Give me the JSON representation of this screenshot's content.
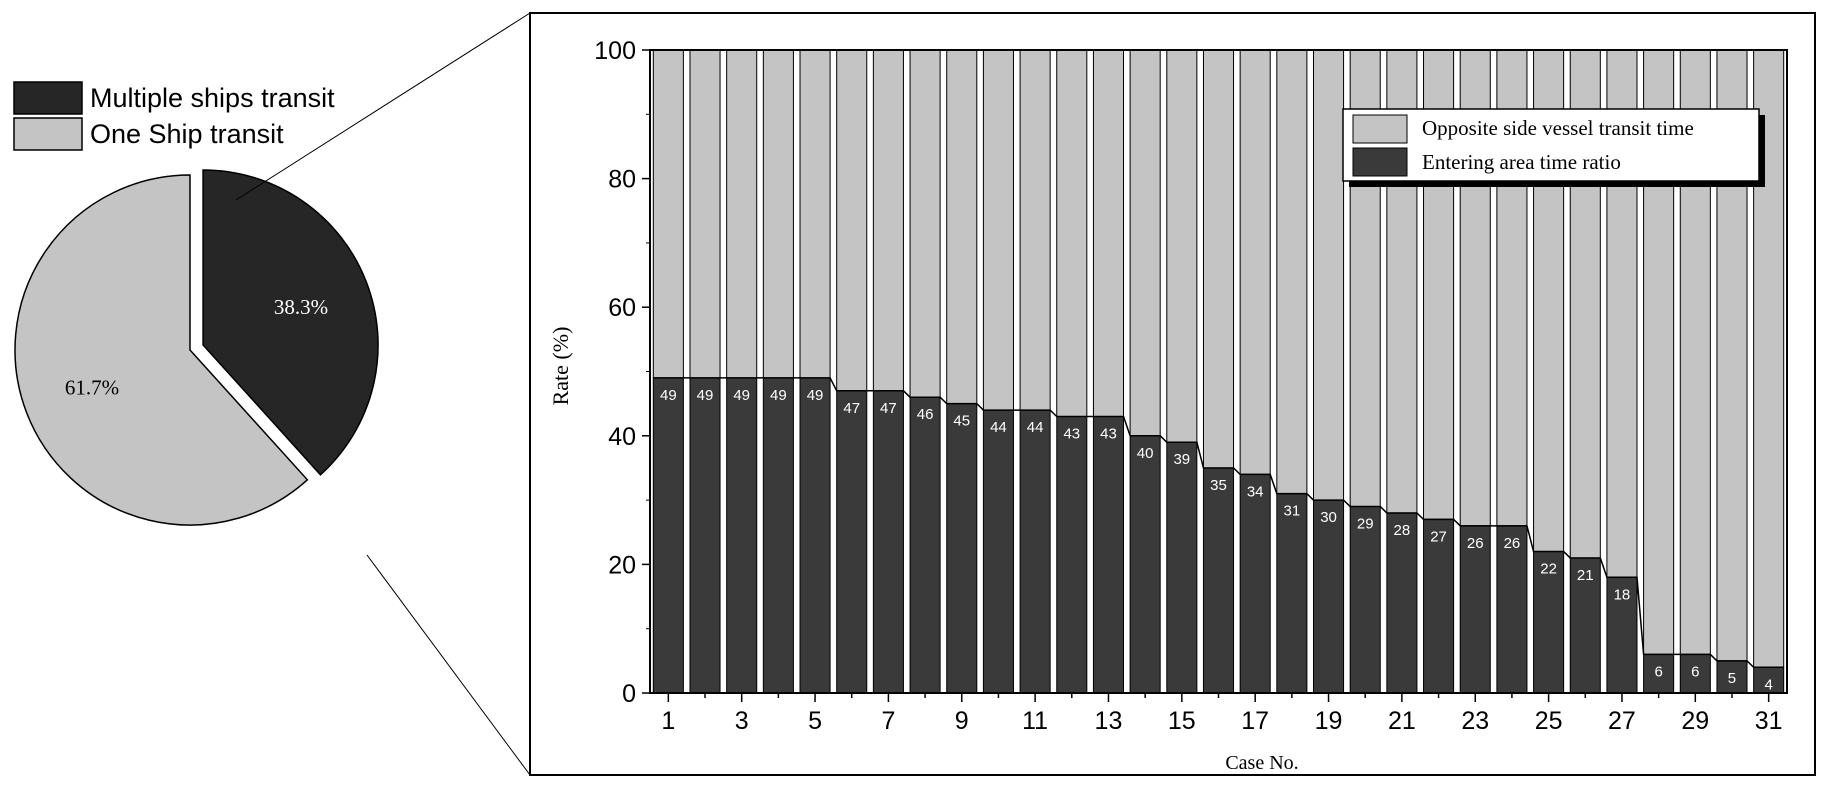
{
  "colors": {
    "dark": "#3a3a3a",
    "darker": "#262626",
    "light": "#c4c4c4",
    "stroke": "#000000",
    "label_text": "#ffffff"
  },
  "chart_data": [
    {
      "type": "pie",
      "legend_position": "top-left",
      "slices": [
        {
          "name": "Multiple ships transit",
          "value": 38.3,
          "label": "38.3%",
          "color": "#262626",
          "exploded": true
        },
        {
          "name": "One Ship transit",
          "value": 61.7,
          "label": "61.7%",
          "color": "#c4c4c4",
          "exploded": false
        }
      ]
    },
    {
      "type": "bar",
      "stacked": true,
      "xlabel": "Case No.",
      "ylabel": "Rate (%)",
      "ylim": [
        0,
        100
      ],
      "yticks": [
        "0",
        "20",
        "40",
        "60",
        "80",
        "100"
      ],
      "xticks": [
        "1",
        "3",
        "5",
        "7",
        "9",
        "11",
        "13",
        "15",
        "17",
        "19",
        "21",
        "23",
        "25",
        "27",
        "29",
        "31"
      ],
      "grid": false,
      "legend_position": "top-right",
      "categories": [
        1,
        2,
        3,
        4,
        5,
        6,
        7,
        8,
        9,
        10,
        11,
        12,
        13,
        14,
        15,
        16,
        17,
        18,
        19,
        20,
        21,
        22,
        23,
        24,
        25,
        26,
        27,
        28,
        29,
        30,
        31
      ],
      "series": [
        {
          "name": "Entering area time ratio",
          "color": "#3a3a3a",
          "values": [
            49,
            49,
            49,
            49,
            49,
            47,
            47,
            46,
            45,
            44,
            44,
            43,
            43,
            40,
            39,
            35,
            34,
            31,
            30,
            29,
            28,
            27,
            26,
            26,
            22,
            21,
            18,
            6,
            6,
            5,
            4
          ],
          "labels": [
            "49",
            "49",
            "49",
            "49",
            "49",
            "47",
            "47",
            "46",
            "45",
            "44",
            "44",
            "43",
            "43",
            "40",
            "39",
            "35",
            "34",
            "31",
            "30",
            "29",
            "28",
            "27",
            "26",
            "26",
            "22",
            "21",
            "18",
            "6",
            "6",
            "5",
            "4"
          ]
        },
        {
          "name": "Opposite side vessel transit time",
          "color": "#c4c4c4",
          "values": [
            51,
            51,
            51,
            51,
            51,
            53,
            53,
            54,
            55,
            56,
            56,
            57,
            57,
            60,
            61,
            65,
            66,
            69,
            70,
            71,
            72,
            73,
            74,
            74,
            78,
            79,
            82,
            94,
            94,
            95,
            96
          ]
        }
      ]
    }
  ]
}
